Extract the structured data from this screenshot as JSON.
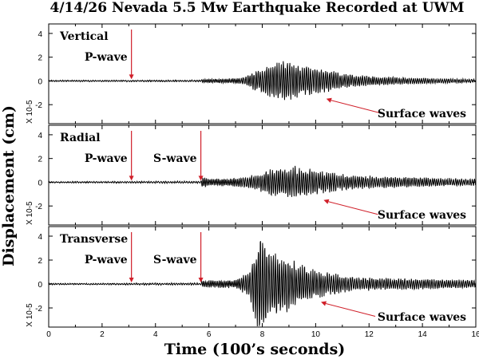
{
  "chart_data": {
    "type": "line",
    "title": "4/14/26 Nevada 5.5 Mw Earthquake Recorded at UWM",
    "xlabel": "Time (100’s seconds)",
    "ylabel": "Displacement (cm)",
    "xlim": [
      0,
      16
    ],
    "x_ticks": [
      0,
      2,
      4,
      6,
      8,
      10,
      12,
      14,
      16
    ],
    "y_ticks": [
      -2,
      0,
      2,
      4
    ],
    "y_scale_label": "X 10-5",
    "grid": false,
    "line_color": "#000000",
    "arrow_color": "#d0202a",
    "panels": [
      {
        "name": "Vertical",
        "ylim": [
          -3.6,
          4.8
        ],
        "noise": 0.06,
        "onset": 5.75,
        "envelope": [
          [
            0,
            0.05
          ],
          [
            5.7,
            0.06
          ],
          [
            5.75,
            0.15
          ],
          [
            7.2,
            0.25
          ],
          [
            7.6,
            0.7
          ],
          [
            8.2,
            1.4
          ],
          [
            8.8,
            1.9
          ],
          [
            9.2,
            1.6
          ],
          [
            10.0,
            1.2
          ],
          [
            11.5,
            0.5
          ],
          [
            13.5,
            0.28
          ],
          [
            16,
            0.15
          ]
        ],
        "annotations": [
          {
            "label": "P-wave",
            "x": 3.1,
            "kind": "down"
          },
          {
            "label": "Surface waves",
            "x": 10.4,
            "kind": "diag"
          }
        ]
      },
      {
        "name": "Radial",
        "ylim": [
          -3.6,
          4.8
        ],
        "noise": 0.06,
        "onset": 5.75,
        "envelope": [
          [
            0,
            0.05
          ],
          [
            5.7,
            0.08
          ],
          [
            5.75,
            0.6
          ],
          [
            6.0,
            0.3
          ],
          [
            7.2,
            0.4
          ],
          [
            8.0,
            0.9
          ],
          [
            8.6,
            1.4
          ],
          [
            9.3,
            1.4
          ],
          [
            10.2,
            1.0
          ],
          [
            11.5,
            0.6
          ],
          [
            13.5,
            0.45
          ],
          [
            16,
            0.3
          ]
        ],
        "annotations": [
          {
            "label": "P-wave",
            "x": 3.1,
            "kind": "down"
          },
          {
            "label": "S-wave",
            "x": 5.7,
            "kind": "down"
          },
          {
            "label": "Surface waves",
            "x": 10.3,
            "kind": "diag"
          }
        ]
      },
      {
        "name": "Transverse",
        "ylim": [
          -3.6,
          4.8
        ],
        "noise": 0.06,
        "onset": 5.75,
        "envelope": [
          [
            0,
            0.05
          ],
          [
            5.7,
            0.08
          ],
          [
            5.75,
            0.3
          ],
          [
            7.0,
            0.35
          ],
          [
            7.5,
            1.2
          ],
          [
            7.9,
            4.6
          ],
          [
            8.3,
            3.0
          ],
          [
            9.0,
            2.3
          ],
          [
            10.0,
            1.2
          ],
          [
            11.5,
            0.6
          ],
          [
            13.0,
            0.5
          ],
          [
            16,
            0.35
          ]
        ],
        "annotations": [
          {
            "label": "P-wave",
            "x": 3.1,
            "kind": "down"
          },
          {
            "label": "S-wave",
            "x": 5.7,
            "kind": "down"
          },
          {
            "label": "Surface waves",
            "x": 10.2,
            "kind": "diag"
          }
        ]
      }
    ]
  }
}
